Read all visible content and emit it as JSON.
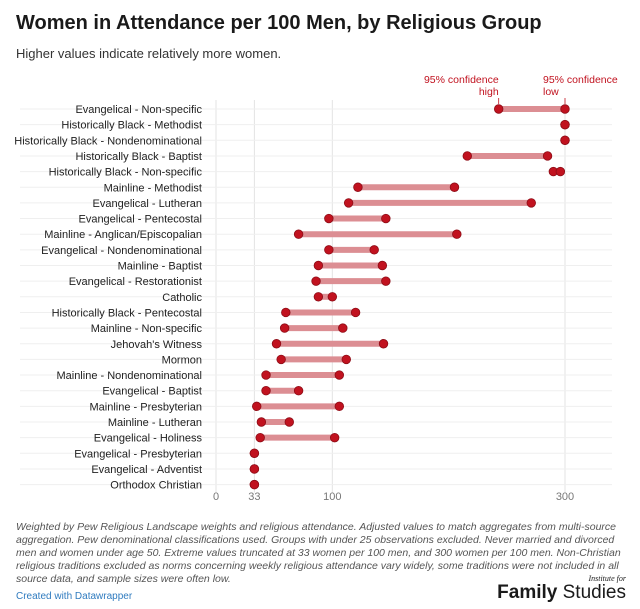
{
  "title": "Women in Attendance per 100 Men, by Religious Group",
  "subtitle": "Higher values indicate relatively more women.",
  "notes": "Weighted by Pew Religious Landscape weights and religious attendance. Adjusted values to match aggregates from multi-source aggregation. Pew denominational classifications used. Groups with under 25 observations excluded. Never married and divorced men and women under age 50. Extreme values truncated at 33 women per 100 men, and 300 women per 100 men. Non-Christian religious traditions excluded as norms concerning weekly religious attendance vary widely, some traditions were not included in all source data, and sample sizes were often low.",
  "credit": "Created with Datawrapper",
  "logo": {
    "top": "Institute for",
    "bottom_bold": "Family",
    "bottom_regular": "Studies"
  },
  "colors": {
    "dot": "#c1121f",
    "dot_stroke": "#8e0d17",
    "bar": "#dc8e93",
    "annotation": "#c1121f"
  },
  "chart_data": {
    "type": "dumbbell",
    "title": "Women in Attendance per 100 Men, by Religious Group",
    "xlim": [
      0,
      300
    ],
    "xticks": [
      0,
      33,
      100,
      300
    ],
    "grid": true,
    "annotations": [
      {
        "text": [
          "95% confidence",
          "high"
        ],
        "attached_to": "Evangelical - Non-specific",
        "point": "low"
      },
      {
        "text": [
          "95% confidence",
          "low"
        ],
        "attached_to": "Evangelical - Non-specific",
        "point": "high"
      }
    ],
    "categories": [
      "Evangelical - Non-specific",
      "Historically Black - Methodist",
      "Historically Black - Nondenominational",
      "Historically Black - Baptist",
      "Historically Black - Non-specific",
      "Mainline - Methodist",
      "Evangelical - Lutheran",
      "Evangelical - Pentecostal",
      "Mainline - Anglican/Episcopalian",
      "Evangelical - Nondenominational",
      "Mainline - Baptist",
      "Evangelical - Restorationist",
      "Catholic",
      "Historically Black - Pentecostal",
      "Mainline - Non-specific",
      "Jehovah's Witness",
      "Mormon",
      "Mainline - Nondenominational",
      "Evangelical - Baptist",
      "Mainline - Presbyterian",
      "Mainline - Lutheran",
      "Evangelical - Holiness",
      "Evangelical - Presbyterian",
      "Evangelical - Adventist",
      "Orthodox Christian"
    ],
    "series": [
      {
        "values": [
          243,
          300,
          300,
          216,
          290,
          122,
          114,
          97,
          71,
          97,
          88,
          86,
          88,
          60,
          59,
          52,
          56,
          43,
          43,
          35,
          39,
          38,
          33,
          33,
          33
        ]
      },
      {
        "values": [
          300,
          300,
          300,
          285,
          296,
          205,
          271,
          146,
          207,
          136,
          143,
          146,
          100,
          120,
          109,
          144,
          112,
          106,
          71,
          106,
          63,
          102,
          33,
          33,
          33
        ]
      }
    ]
  }
}
